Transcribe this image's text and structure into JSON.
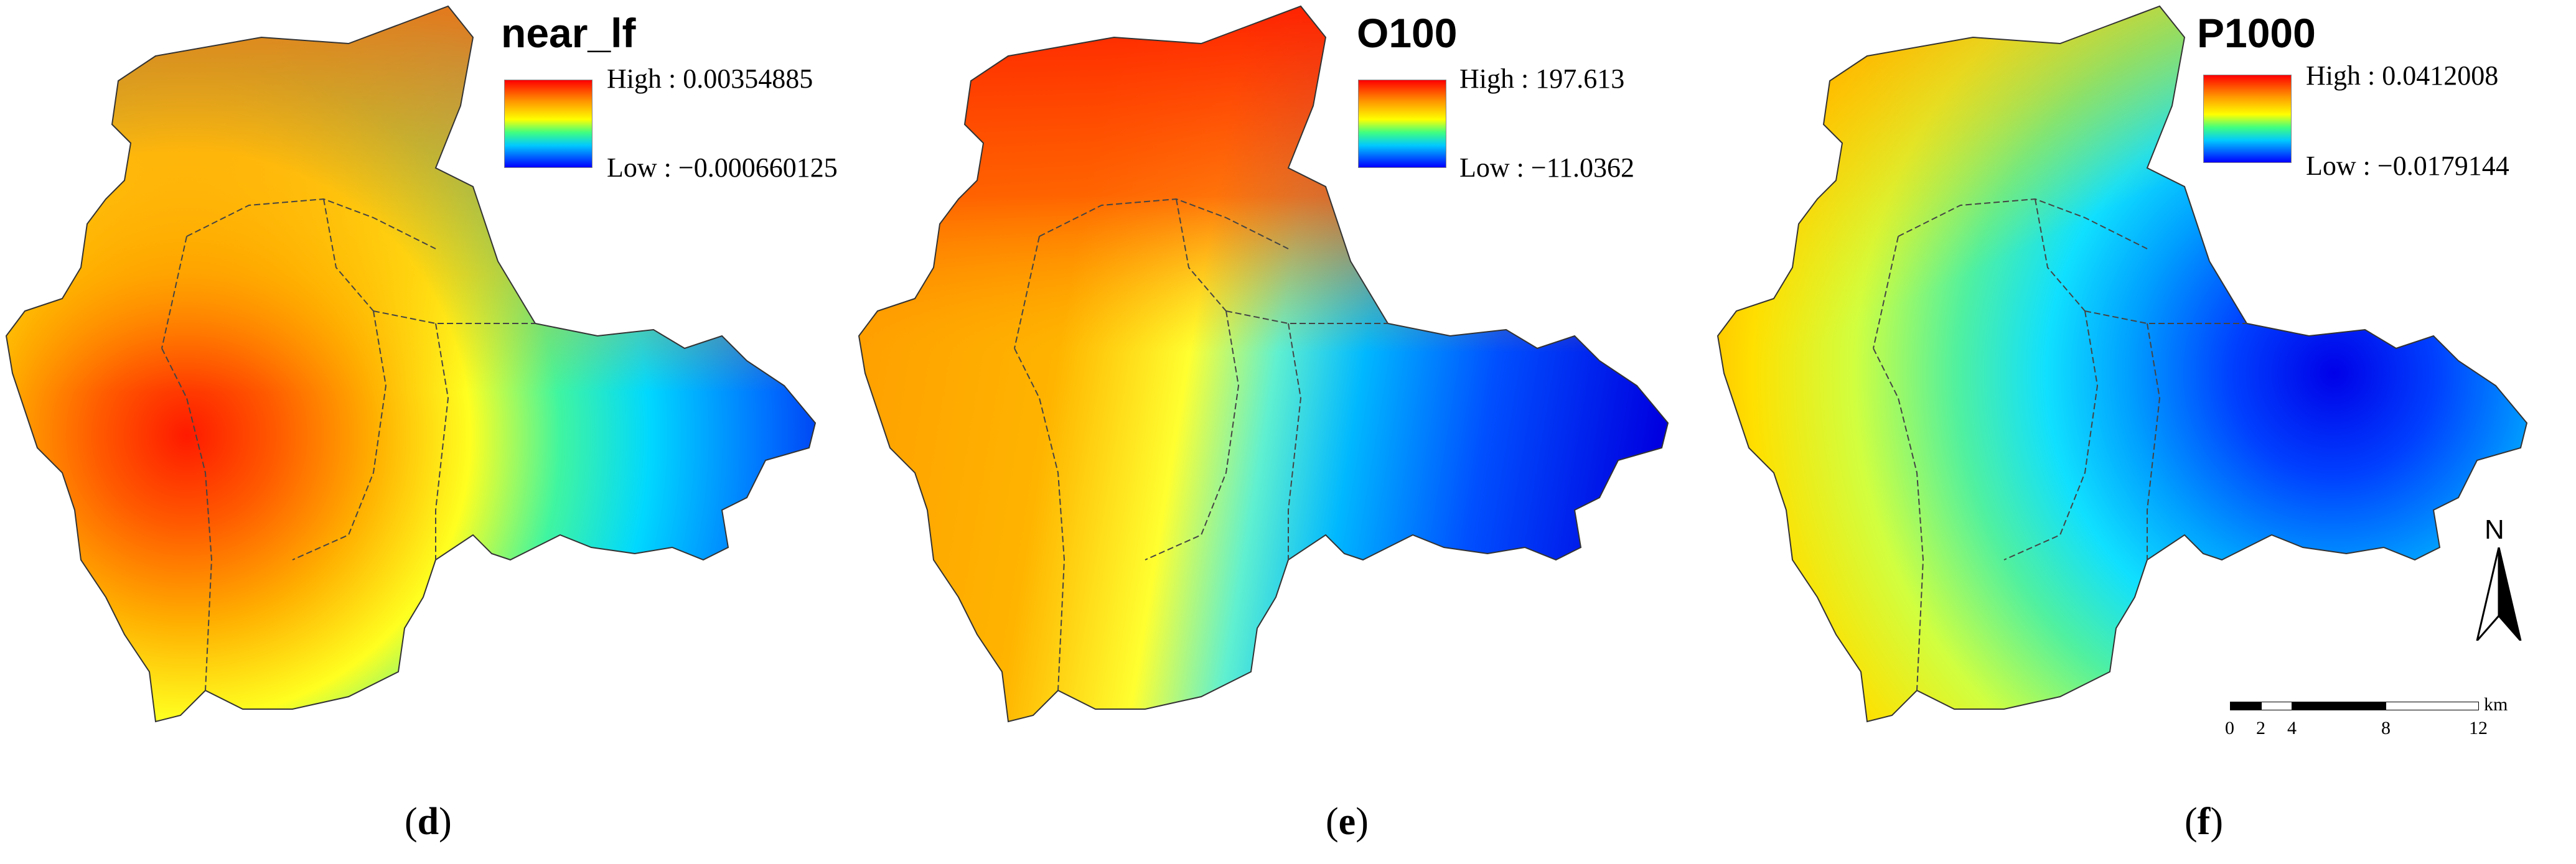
{
  "panels": [
    {
      "id": "d",
      "title": "near_lf",
      "legend_high": "High : 0.00354885",
      "legend_low": "Low : −0.000660125",
      "caption_letter": "d"
    },
    {
      "id": "e",
      "title": "O100",
      "legend_high": "High : 197.613",
      "legend_low": "Low : −11.0362",
      "caption_letter": "e"
    },
    {
      "id": "f",
      "title": "P1000",
      "legend_high": "High : 0.0412008",
      "legend_low": "Low : −0.0179144",
      "caption_letter": "f"
    }
  ],
  "north_arrow": {
    "label": "N"
  },
  "scale_bar": {
    "ticks": [
      "0",
      "2",
      "4",
      "8",
      "12"
    ],
    "unit": "km"
  },
  "colors": {
    "high": "#ff0000",
    "mid": "#ffff00",
    "low": "#0000ff"
  }
}
